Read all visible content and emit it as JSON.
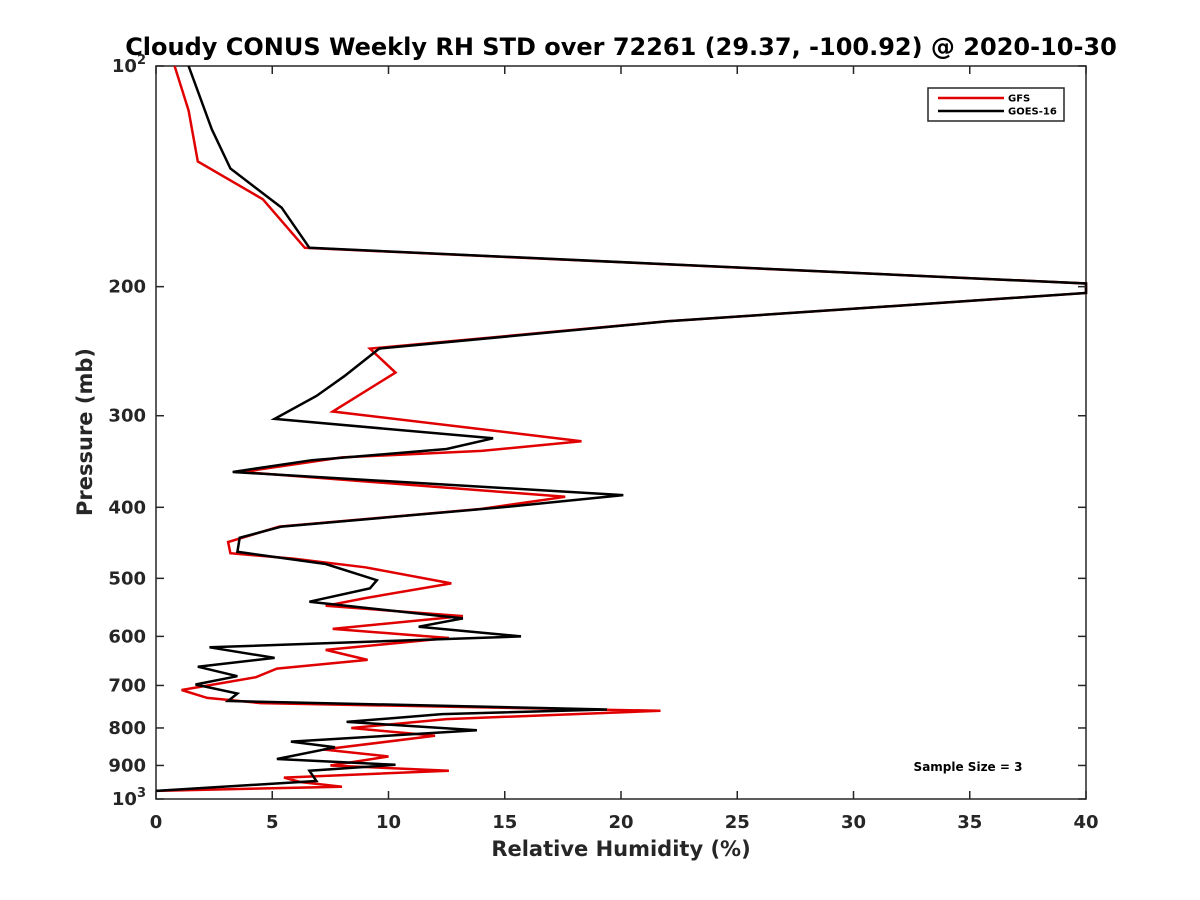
{
  "chart_data": {
    "type": "line",
    "title": "Cloudy CONUS Weekly RH STD over 72261 (29.37, -100.92) @ 2020-10-30",
    "xlabel": "Relative Humidity (%)",
    "ylabel": "Pressure (mb)",
    "xlim": [
      0,
      40
    ],
    "ylim": [
      100,
      1000
    ],
    "yscale": "log",
    "y_reversed": true,
    "grid": false,
    "legend_position": "top-right",
    "annotation": "Sample Size = 3",
    "x_ticks": [
      {
        "value": 0,
        "label": "0"
      },
      {
        "value": 5,
        "label": "5"
      },
      {
        "value": 10,
        "label": "10"
      },
      {
        "value": 15,
        "label": "15"
      },
      {
        "value": 20,
        "label": "20"
      },
      {
        "value": 25,
        "label": "25"
      },
      {
        "value": 30,
        "label": "30"
      },
      {
        "value": 35,
        "label": "35"
      },
      {
        "value": 40,
        "label": "40"
      }
    ],
    "y_ticks": [
      {
        "value": 100,
        "label": "10",
        "sup": "2"
      },
      {
        "value": 200,
        "label": "200"
      },
      {
        "value": 300,
        "label": "300"
      },
      {
        "value": 400,
        "label": "400"
      },
      {
        "value": 500,
        "label": "500"
      },
      {
        "value": 600,
        "label": "600"
      },
      {
        "value": 700,
        "label": "700"
      },
      {
        "value": 800,
        "label": "800"
      },
      {
        "value": 900,
        "label": "900"
      },
      {
        "value": 1000,
        "label": "10",
        "sup": "3"
      }
    ],
    "series": [
      {
        "name": "GFS",
        "color": "#e00000",
        "points": [
          [
            0.8,
            100
          ],
          [
            1.4,
            115
          ],
          [
            1.8,
            135
          ],
          [
            4.6,
            152
          ],
          [
            6.4,
            177
          ],
          [
            40,
            198
          ],
          [
            40,
            204
          ],
          [
            22,
            223
          ],
          [
            9.2,
            243
          ],
          [
            10.3,
            262
          ],
          [
            7.6,
            296
          ],
          [
            18.3,
            325
          ],
          [
            14,
            335
          ],
          [
            8,
            342
          ],
          [
            3.7,
            358
          ],
          [
            17.6,
            387
          ],
          [
            14,
            402
          ],
          [
            5.3,
            425
          ],
          [
            3.1,
            446
          ],
          [
            3.2,
            462
          ],
          [
            5.9,
            470
          ],
          [
            9,
            483
          ],
          [
            12.7,
            508
          ],
          [
            9,
            532
          ],
          [
            7.3,
            545
          ],
          [
            13.2,
            563
          ],
          [
            7.6,
            586
          ],
          [
            12.6,
            603
          ],
          [
            7.3,
            626
          ],
          [
            9.1,
            646
          ],
          [
            5.2,
            664
          ],
          [
            4.3,
            682
          ],
          [
            1.1,
            710
          ],
          [
            2.2,
            728
          ],
          [
            4.5,
            740
          ],
          [
            21.7,
            758
          ],
          [
            12.5,
            778
          ],
          [
            8.4,
            800
          ],
          [
            12,
            820
          ],
          [
            7.2,
            856
          ],
          [
            10,
            875
          ],
          [
            7.5,
            900
          ],
          [
            12.6,
            915
          ],
          [
            5.5,
            935
          ],
          [
            6.2,
            948
          ],
          [
            8,
            962
          ],
          [
            0,
            975
          ]
        ]
      },
      {
        "name": "GOES-16",
        "color": "#000000",
        "points": [
          [
            1.4,
            100
          ],
          [
            2.4,
            122
          ],
          [
            3.2,
            138
          ],
          [
            5.4,
            156
          ],
          [
            6.6,
            177
          ],
          [
            40,
            198
          ],
          [
            40,
            204
          ],
          [
            22,
            223
          ],
          [
            9.6,
            243
          ],
          [
            8.1,
            265
          ],
          [
            6.9,
            282
          ],
          [
            5.1,
            303
          ],
          [
            14.5,
            322
          ],
          [
            12.5,
            333
          ],
          [
            6.7,
            345
          ],
          [
            3.3,
            358
          ],
          [
            20.1,
            385
          ],
          [
            14.9,
            400
          ],
          [
            5.4,
            425
          ],
          [
            3.6,
            440
          ],
          [
            3.5,
            460
          ],
          [
            7.3,
            478
          ],
          [
            9.5,
            503
          ],
          [
            9.2,
            516
          ],
          [
            6.6,
            538
          ],
          [
            13.2,
            567
          ],
          [
            11.3,
            582
          ],
          [
            15.7,
            600
          ],
          [
            2.3,
            621
          ],
          [
            5.1,
            642
          ],
          [
            1.8,
            660
          ],
          [
            3.5,
            680
          ],
          [
            1.7,
            698
          ],
          [
            3.5,
            718
          ],
          [
            3.1,
            735
          ],
          [
            19.4,
            755
          ],
          [
            12.3,
            766
          ],
          [
            8.2,
            785
          ],
          [
            13.8,
            806
          ],
          [
            5.8,
            835
          ],
          [
            7.7,
            850
          ],
          [
            5.2,
            882
          ],
          [
            10.3,
            898
          ],
          [
            6.6,
            915
          ],
          [
            6.9,
            945
          ],
          [
            0,
            975
          ]
        ]
      }
    ]
  }
}
